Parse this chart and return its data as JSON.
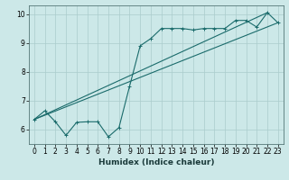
{
  "xlabel": "Humidex (Indice chaleur)",
  "ylabel": "",
  "bg_color": "#cce8e8",
  "line_color": "#1a6b6b",
  "grid_color": "#aacccc",
  "xlim": [
    -0.5,
    23.5
  ],
  "ylim": [
    5.5,
    10.3
  ],
  "xticks": [
    0,
    1,
    2,
    3,
    4,
    5,
    6,
    7,
    8,
    9,
    10,
    11,
    12,
    13,
    14,
    15,
    16,
    17,
    18,
    19,
    20,
    21,
    22,
    23
  ],
  "yticks": [
    6,
    7,
    8,
    9,
    10
  ],
  "line1_x": [
    0,
    1,
    2,
    3,
    4,
    5,
    6,
    7,
    8,
    9,
    10,
    11,
    12,
    13,
    14,
    15,
    16,
    17,
    18,
    19,
    20,
    21,
    22,
    23
  ],
  "line1_y": [
    6.35,
    6.65,
    6.27,
    5.8,
    6.25,
    6.27,
    6.27,
    5.75,
    6.07,
    7.5,
    8.9,
    9.15,
    9.5,
    9.5,
    9.5,
    9.45,
    9.5,
    9.5,
    9.5,
    9.78,
    9.78,
    9.55,
    10.05,
    9.7
  ],
  "line2_x": [
    0,
    22
  ],
  "line2_y": [
    6.35,
    10.05
  ],
  "line3_x": [
    0,
    23
  ],
  "line3_y": [
    6.35,
    9.7
  ]
}
